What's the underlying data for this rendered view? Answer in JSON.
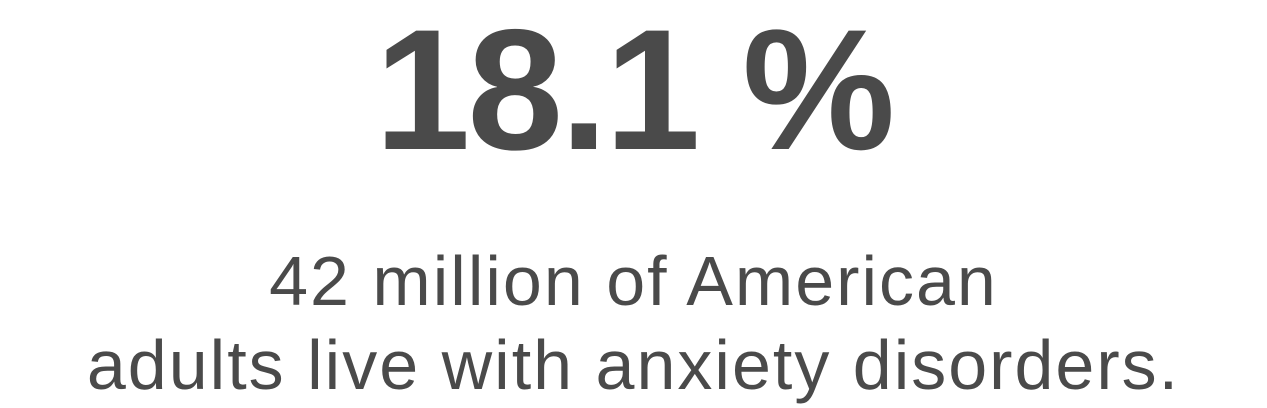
{
  "statistic": {
    "value": "18.1 %",
    "caption_line_1": "42 million of American",
    "caption_line_2": "adults live with anxiety disorders."
  },
  "colors": {
    "text": "#4a4a4a",
    "background": "#ffffff"
  }
}
